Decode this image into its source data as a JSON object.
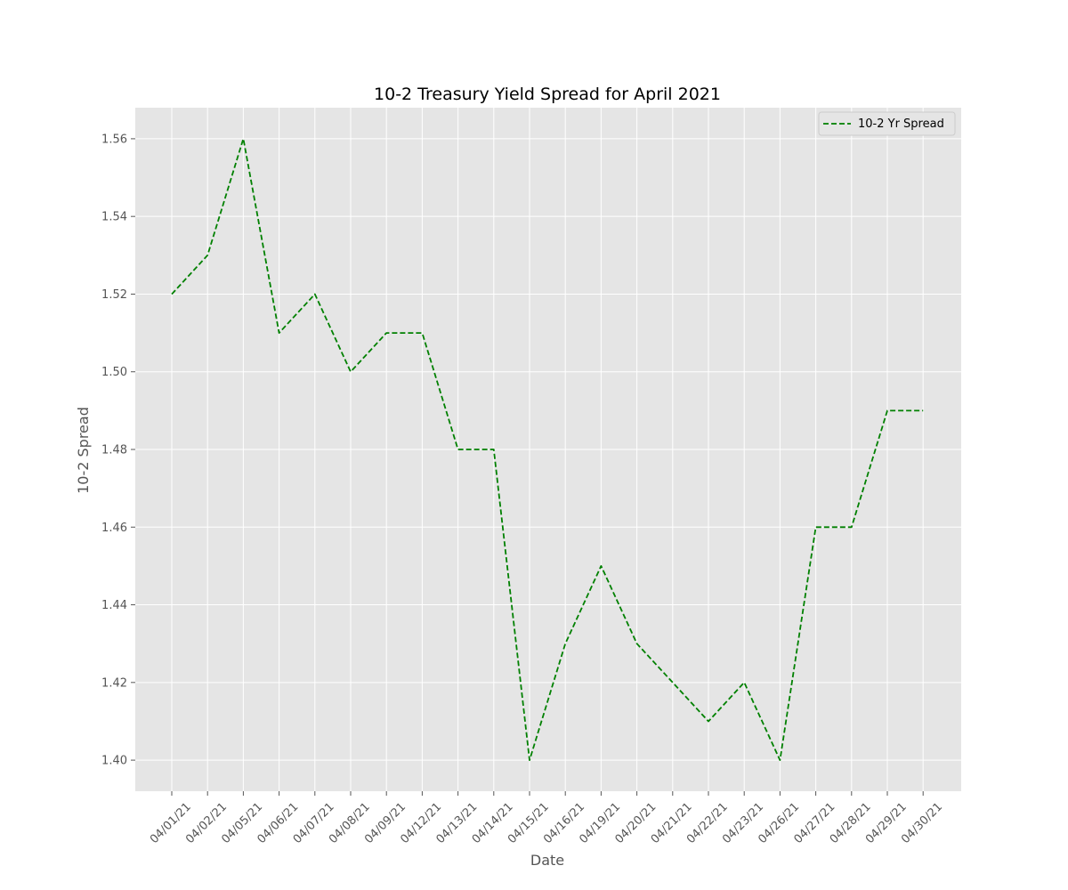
{
  "chart_data": {
    "type": "line",
    "title": "10-2 Treasury Yield Spread for April 2021",
    "xlabel": "Date",
    "ylabel": "10-2 Spread",
    "categories": [
      "04/01/21",
      "04/02/21",
      "04/05/21",
      "04/06/21",
      "04/07/21",
      "04/08/21",
      "04/09/21",
      "04/12/21",
      "04/13/21",
      "04/14/21",
      "04/15/21",
      "04/16/21",
      "04/19/21",
      "04/20/21",
      "04/21/21",
      "04/22/21",
      "04/23/21",
      "04/26/21",
      "04/27/21",
      "04/28/21",
      "04/29/21",
      "04/30/21"
    ],
    "series": [
      {
        "name": "10-2 Yr Spread",
        "color": "#008000",
        "line_style": "dashed",
        "values": [
          1.52,
          1.53,
          1.56,
          1.51,
          1.52,
          1.5,
          1.51,
          1.51,
          1.48,
          1.48,
          1.4,
          1.43,
          1.45,
          1.43,
          1.42,
          1.41,
          1.42,
          1.4,
          1.46,
          1.46,
          1.49,
          1.49
        ]
      }
    ],
    "yticks": [
      "1.40",
      "1.42",
      "1.44",
      "1.46",
      "1.48",
      "1.50",
      "1.52",
      "1.54",
      "1.56"
    ],
    "ylim": [
      1.392,
      1.568
    ],
    "grid": true,
    "legend_position": "upper right",
    "background_color": "#e5e5e5",
    "grid_color": "#ffffff"
  }
}
